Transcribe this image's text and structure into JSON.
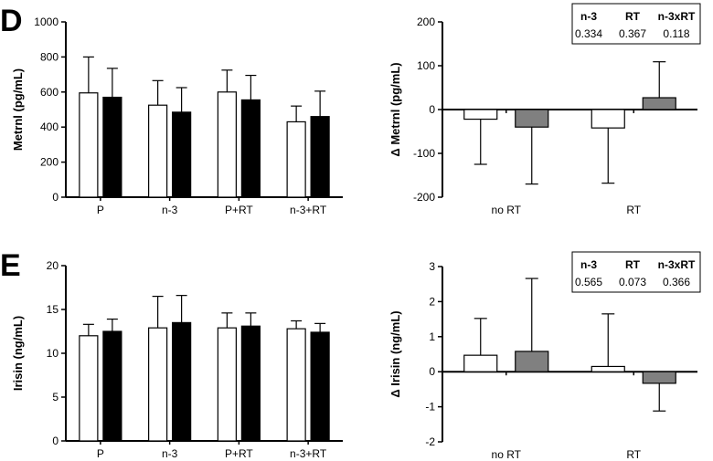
{
  "figure": {
    "panel_labels": [
      "D",
      "E"
    ]
  },
  "colors": {
    "open_bar": "#ffffff",
    "filled_bar": "#000000",
    "gray_bar": "#808080",
    "axis": "#000000"
  },
  "chart_data": [
    {
      "id": "D-left",
      "type": "bar",
      "ylabel": "Metrnl (pg/mL)",
      "ylim": [
        0,
        1000
      ],
      "yticks": [
        0,
        200,
        400,
        600,
        800,
        1000
      ],
      "categories": [
        "P",
        "n-3",
        "P+RT",
        "n-3+RT"
      ],
      "series": [
        {
          "values": [
            595,
            525,
            600,
            430
          ],
          "errors": [
            205,
            140,
            125,
            90
          ],
          "color": "#ffffff"
        },
        {
          "values": [
            570,
            485,
            555,
            460
          ],
          "errors": [
            165,
            140,
            140,
            145
          ],
          "color": "#000000"
        }
      ]
    },
    {
      "id": "D-right",
      "type": "bar",
      "ylabel": "Δ Metrnl (pg/mL)",
      "ylim": [
        -200,
        200
      ],
      "yticks": [
        -200,
        -100,
        0,
        100,
        200
      ],
      "categories": [
        "no RT",
        "RT"
      ],
      "series": [
        {
          "values": [
            -22,
            -42
          ],
          "errors": [
            103,
            126
          ],
          "error_dir": [
            -1,
            -1
          ],
          "color": "#ffffff"
        },
        {
          "values": [
            -40,
            27
          ],
          "errors": [
            130,
            82
          ],
          "error_dir": [
            -1,
            1
          ],
          "color": "#808080"
        }
      ],
      "stats_table": {
        "headers": [
          "n-3",
          "RT",
          "n-3xRT"
        ],
        "values": [
          "0.334",
          "0.367",
          "0.118"
        ]
      }
    },
    {
      "id": "E-left",
      "type": "bar",
      "ylabel": "Irisin (ng/mL)",
      "ylim": [
        0,
        20
      ],
      "yticks": [
        0,
        5,
        10,
        15,
        20
      ],
      "categories": [
        "P",
        "n-3",
        "P+RT",
        "n-3+RT"
      ],
      "series": [
        {
          "values": [
            12.0,
            12.9,
            12.9,
            12.8
          ],
          "errors": [
            1.3,
            3.6,
            1.7,
            0.9
          ],
          "color": "#ffffff"
        },
        {
          "values": [
            12.5,
            13.5,
            13.1,
            12.4
          ],
          "errors": [
            1.4,
            3.1,
            1.5,
            1.0
          ],
          "color": "#000000"
        }
      ]
    },
    {
      "id": "E-right",
      "type": "bar",
      "ylabel": "Δ Irisin (ng/mL)",
      "ylim": [
        -2,
        3
      ],
      "yticks": [
        -2,
        -1,
        0,
        1,
        2,
        3
      ],
      "categories": [
        "no RT",
        "RT"
      ],
      "series": [
        {
          "values": [
            0.47,
            0.15
          ],
          "errors": [
            1.05,
            1.5
          ],
          "error_dir": [
            1,
            1
          ],
          "color": "#ffffff"
        },
        {
          "values": [
            0.58,
            -0.33
          ],
          "errors": [
            2.08,
            0.79
          ],
          "error_dir": [
            1,
            -1
          ],
          "color": "#808080"
        }
      ],
      "stats_table": {
        "headers": [
          "n-3",
          "RT",
          "n-3xRT"
        ],
        "values": [
          "0.565",
          "0.073",
          "0.366"
        ]
      }
    }
  ]
}
